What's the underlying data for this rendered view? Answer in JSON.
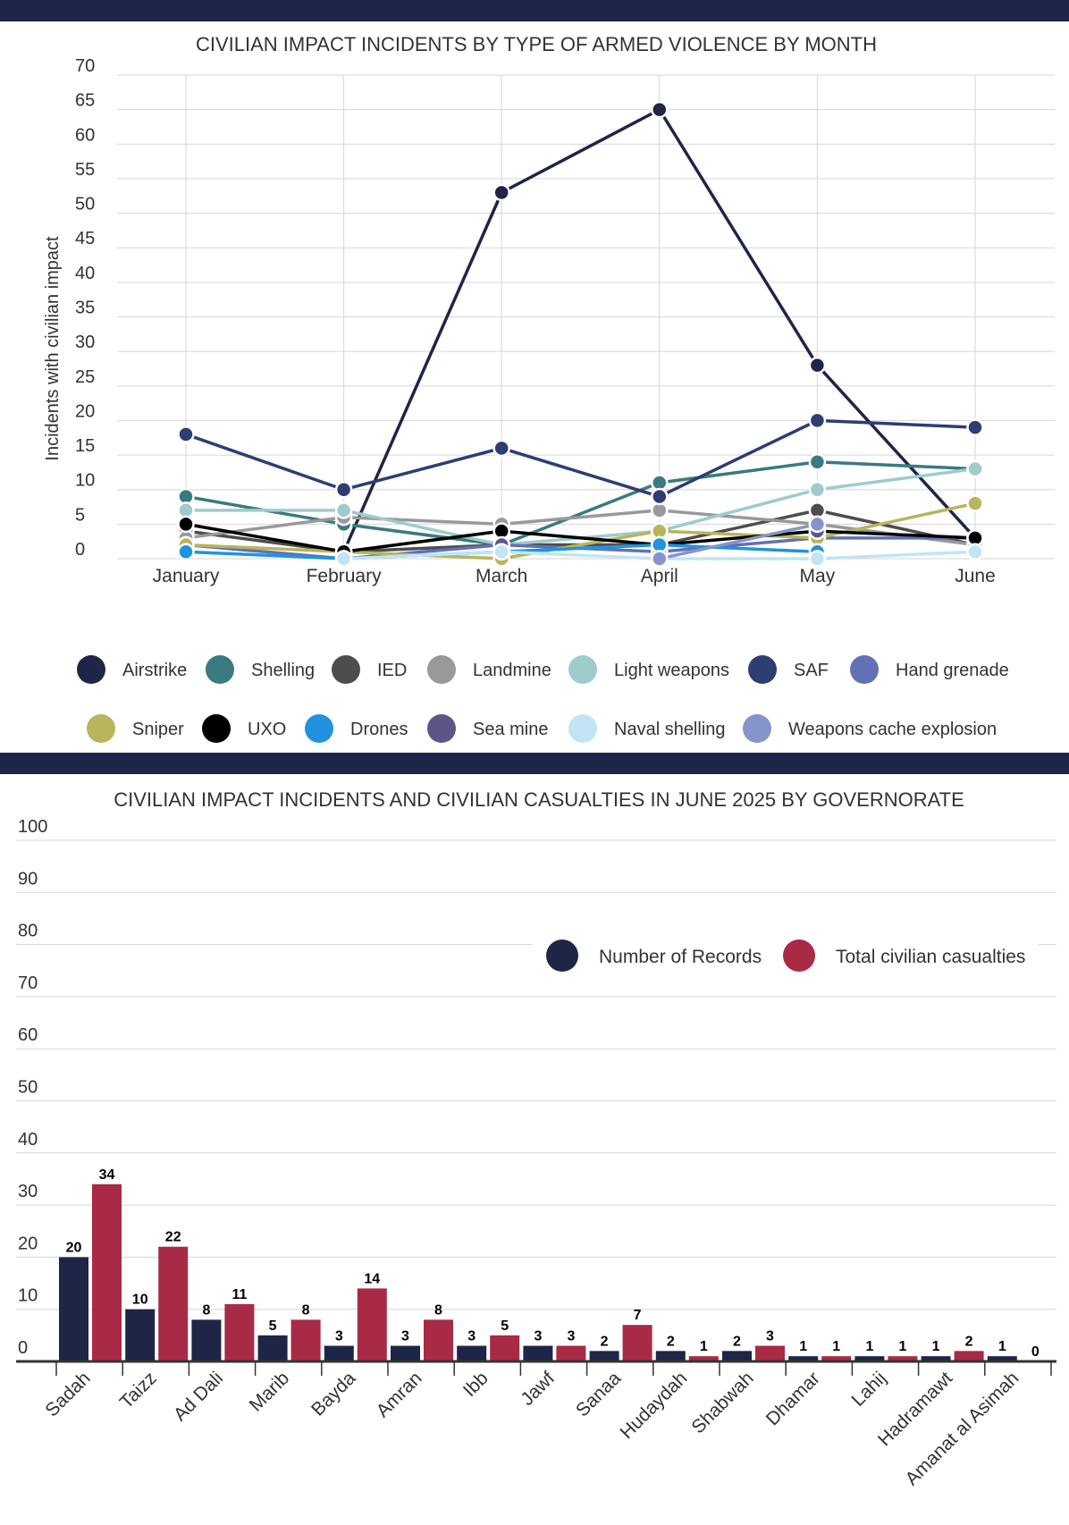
{
  "colors": {
    "band": "#1f2547",
    "records": "#1f2547",
    "casualties": "#a82a44"
  },
  "chart_data": [
    {
      "type": "line",
      "title": "CIVILIAN IMPACT INCIDENTS BY TYPE OF ARMED VIOLENCE BY MONTH",
      "xlabel": "",
      "ylabel": "Incidents with civilian impact",
      "categories": [
        "January",
        "February",
        "March",
        "April",
        "May",
        "June"
      ],
      "ylim": [
        0,
        70
      ],
      "yticks": [
        0,
        5,
        10,
        15,
        20,
        25,
        30,
        35,
        40,
        45,
        50,
        55,
        60,
        65,
        70
      ],
      "grid": true,
      "legend_position": "bottom",
      "series": [
        {
          "name": "Airstrike",
          "color": "#1f2547",
          "values": [
            null,
            1,
            53,
            65,
            28,
            3
          ]
        },
        {
          "name": "Shelling",
          "color": "#3a7a80",
          "values": [
            9,
            5,
            2,
            11,
            14,
            13
          ]
        },
        {
          "name": "IED",
          "color": "#4d4d4d",
          "values": [
            4,
            1,
            2,
            2,
            7,
            2
          ]
        },
        {
          "name": "Landmine",
          "color": "#999999",
          "values": [
            3,
            6,
            5,
            7,
            5,
            2
          ]
        },
        {
          "name": "Light weapons",
          "color": "#9fcbcc",
          "values": [
            7,
            7,
            2,
            4,
            10,
            13
          ]
        },
        {
          "name": "SAF",
          "color": "#2e3d72",
          "values": [
            18,
            10,
            16,
            9,
            20,
            19
          ]
        },
        {
          "name": "Hand grenade",
          "color": "#6271b3",
          "values": [
            2,
            0,
            2,
            1,
            3,
            3
          ]
        },
        {
          "name": "Sniper",
          "color": "#b8b55c",
          "values": [
            2,
            1,
            0,
            4,
            3,
            8
          ]
        },
        {
          "name": "UXO",
          "color": "#000000",
          "values": [
            5,
            1,
            4,
            2,
            4,
            3
          ]
        },
        {
          "name": "Drones",
          "color": "#2292e0",
          "values": [
            1,
            0,
            1,
            2,
            1,
            null
          ]
        },
        {
          "name": "Sea mine",
          "color": "#5c5688",
          "values": [
            null,
            null,
            2,
            null,
            4,
            null
          ]
        },
        {
          "name": "Naval shelling",
          "color": "#c2e4f5",
          "values": [
            null,
            0,
            1,
            0,
            0,
            1
          ]
        },
        {
          "name": "Weapons cache explosion",
          "color": "#8694cc",
          "values": [
            null,
            null,
            null,
            0,
            5,
            null
          ]
        }
      ]
    },
    {
      "type": "bar",
      "title": "CIVILIAN IMPACT INCIDENTS AND CIVILIAN CASUALTIES IN JUNE 2025 BY GOVERNORATE",
      "xlabel": "",
      "ylabel": "",
      "categories": [
        "Sadah",
        "Taizz",
        "Ad Dali",
        "Marib",
        "Bayda",
        "Amran",
        "Ibb",
        "Jawf",
        "Sanaa",
        "Hudaydah",
        "Shabwah",
        "Dhamar",
        "Lahij",
        "Hadramawt",
        "Amanat al Asimah"
      ],
      "ylim": [
        0,
        100
      ],
      "yticks": [
        0,
        10,
        20,
        30,
        40,
        50,
        60,
        70,
        80,
        90,
        100
      ],
      "grid": true,
      "legend_position": "top-right",
      "series": [
        {
          "name": "Number of Records",
          "color": "#1f2547",
          "values": [
            20,
            10,
            8,
            5,
            3,
            3,
            3,
            3,
            2,
            2,
            2,
            1,
            1,
            1,
            1
          ]
        },
        {
          "name": "Total civilian casualties",
          "color": "#a82a44",
          "values": [
            34,
            22,
            11,
            8,
            14,
            8,
            5,
            3,
            7,
            1,
            3,
            1,
            1,
            2,
            0
          ]
        }
      ]
    }
  ]
}
